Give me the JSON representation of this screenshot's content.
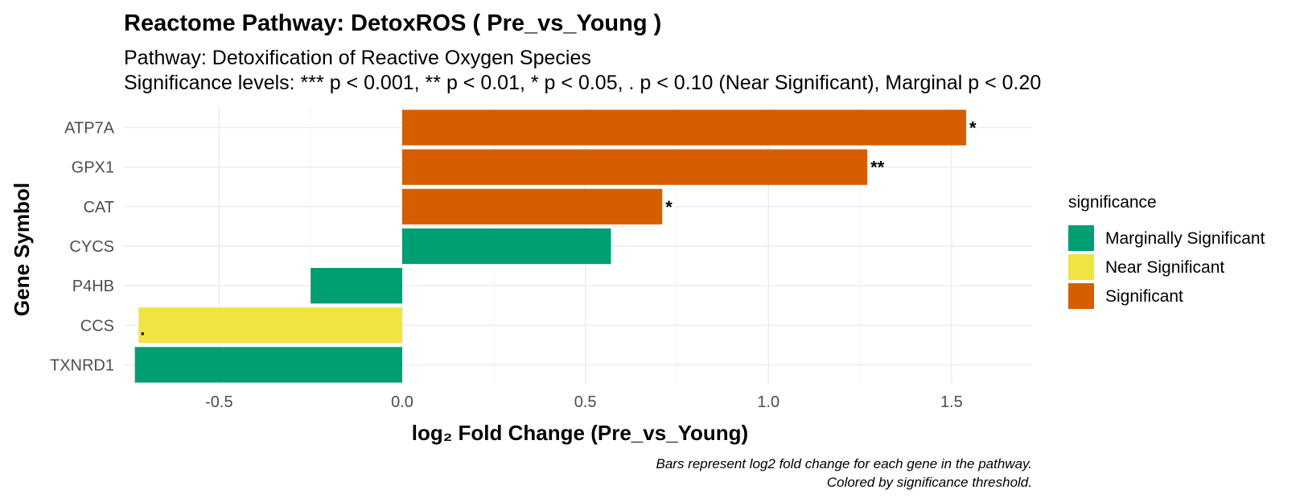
{
  "chart_data": {
    "type": "bar",
    "orientation": "horizontal",
    "title": "Reactome Pathway: DetoxROS ( Pre_vs_Young )",
    "subtitle_lines": [
      "Pathway: Detoxification of Reactive Oxygen Species",
      "Significance levels: *** p < 0.001, ** p < 0.01, * p < 0.05, . p < 0.10 (Near Significant), Marginal p < 0.20"
    ],
    "xlabel": "log₂ Fold Change (Pre_vs_Young)",
    "ylabel": "Gene Symbol",
    "xlim": [
      -0.76,
      1.72
    ],
    "xticks": [
      -0.5,
      0.0,
      0.5,
      1.0,
      1.5
    ],
    "xtick_labels": [
      "-0.5",
      "0.0",
      "0.5",
      "1.0",
      "1.5"
    ],
    "categories": [
      "ATP7A",
      "GPX1",
      "CAT",
      "CYCS",
      "P4HB",
      "CCS",
      "TXNRD1"
    ],
    "values": [
      1.54,
      1.27,
      0.71,
      0.57,
      -0.25,
      -0.72,
      -0.73
    ],
    "significance": [
      "Significant",
      "Significant",
      "Significant",
      "Marginally Significant",
      "Marginally Significant",
      "Near Significant",
      "Marginally Significant"
    ],
    "labels": [
      "*",
      "**",
      "*",
      "",
      "",
      ".",
      ""
    ],
    "legend": {
      "title": "significance",
      "position": "right",
      "entries": [
        {
          "label": "Marginally Significant",
          "color": "#009E73"
        },
        {
          "label": "Near Significant",
          "color": "#F0E442"
        },
        {
          "label": "Significant",
          "color": "#D55E00"
        }
      ]
    },
    "caption_lines": [
      "Bars represent log2 fold change for each gene in the pathway.",
      "Colored by significance threshold."
    ],
    "grid": true
  }
}
